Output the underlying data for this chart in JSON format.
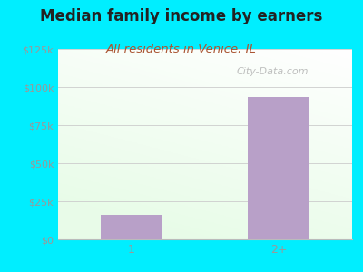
{
  "title": "Median family income by earners",
  "subtitle": "All residents in Venice, IL",
  "categories": [
    "1",
    "2+"
  ],
  "values": [
    16000,
    93750
  ],
  "bar_color": "#b8a0c8",
  "background_color": "#00eeff",
  "title_color": "#222222",
  "subtitle_color": "#aa5533",
  "tick_label_color": "#999999",
  "ylim": [
    0,
    125000
  ],
  "yticks": [
    0,
    25000,
    50000,
    75000,
    100000,
    125000
  ],
  "ytick_labels": [
    "$0",
    "$25k",
    "$50k",
    "$75k",
    "$100k",
    "$125k"
  ],
  "title_fontsize": 12,
  "subtitle_fontsize": 9.5,
  "watermark": "City-Data.com"
}
